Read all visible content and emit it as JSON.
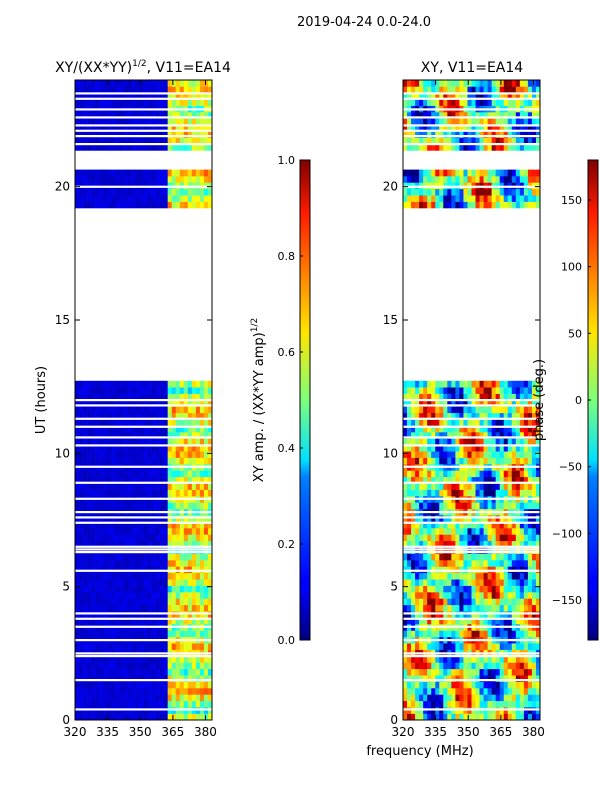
{
  "suptitle": "2019-04-24 0.0-24.0",
  "xlabel": "frequency (MHz)",
  "chart_data": [
    {
      "type": "heatmap",
      "title": "XY/(XX*YY)^1/2, V11=EA14",
      "title_main": "XY/(XX*YY)",
      "title_sup": "1/2",
      "title_tail": ", V11=EA14",
      "ylabel": "UT (hours)",
      "xlim": [
        320,
        383
      ],
      "ylim": [
        0,
        24
      ],
      "xticks": [
        320,
        335,
        350,
        365,
        380
      ],
      "yticks": [
        0,
        5,
        10,
        15,
        20
      ],
      "colormap": "jet",
      "colorbar": {
        "label_main": "XY amp. / (XX*YY amp)",
        "label_sup": "1/2",
        "vmin": 0.0,
        "vmax": 1.0,
        "ticks": [
          "0.0",
          "0.2",
          "0.4",
          "0.6",
          "0.8",
          "1.0"
        ],
        "tick_values": [
          0.0,
          0.2,
          0.4,
          0.6,
          0.8,
          1.0
        ]
      },
      "data_blocks_ut": [
        [
          0,
          12.8
        ],
        [
          19.3,
          20.6
        ],
        [
          21.3,
          24
        ]
      ],
      "gap_lines_ut": [
        0.4,
        1.5,
        2.4,
        2.5,
        3.0,
        3.5,
        3.8,
        4.0,
        5.6,
        6.3,
        6.4,
        6.5,
        7.4,
        7.6,
        7.8,
        8.3,
        8.9,
        9.5,
        10.3,
        10.6,
        11.0,
        11.3,
        11.8,
        12.0,
        20.0,
        21.6,
        21.9,
        22.1,
        22.3,
        22.6,
        22.9,
        23.3,
        23.5
      ]
    },
    {
      "type": "heatmap",
      "title": "XY, V11=EA14",
      "ylabel": "",
      "xlim": [
        320,
        383
      ],
      "ylim": [
        0,
        24
      ],
      "xticks": [
        320,
        335,
        350,
        365,
        380
      ],
      "yticks": [
        0,
        5,
        10,
        15,
        20
      ],
      "colormap": "jet",
      "colorbar": {
        "label": "phase (deg.)",
        "vmin": -180,
        "vmax": 180,
        "ticks": [
          "−150",
          "−100",
          "−50",
          "0",
          "50",
          "100",
          "150"
        ],
        "tick_values": [
          -150,
          -100,
          -50,
          0,
          50,
          100,
          150
        ]
      },
      "data_blocks_ut": [
        [
          0,
          12.8
        ],
        [
          19.3,
          20.6
        ],
        [
          21.3,
          24
        ]
      ],
      "gap_lines_ut": [
        0.4,
        1.5,
        2.4,
        2.5,
        3.0,
        3.5,
        3.8,
        4.0,
        5.6,
        6.3,
        6.4,
        6.5,
        7.4,
        7.6,
        7.8,
        8.3,
        8.9,
        9.5,
        10.3,
        10.6,
        11.0,
        11.3,
        11.8,
        12.0,
        20.0,
        21.6,
        21.9,
        22.1,
        22.3,
        22.6,
        22.9,
        23.3,
        23.5
      ]
    }
  ]
}
